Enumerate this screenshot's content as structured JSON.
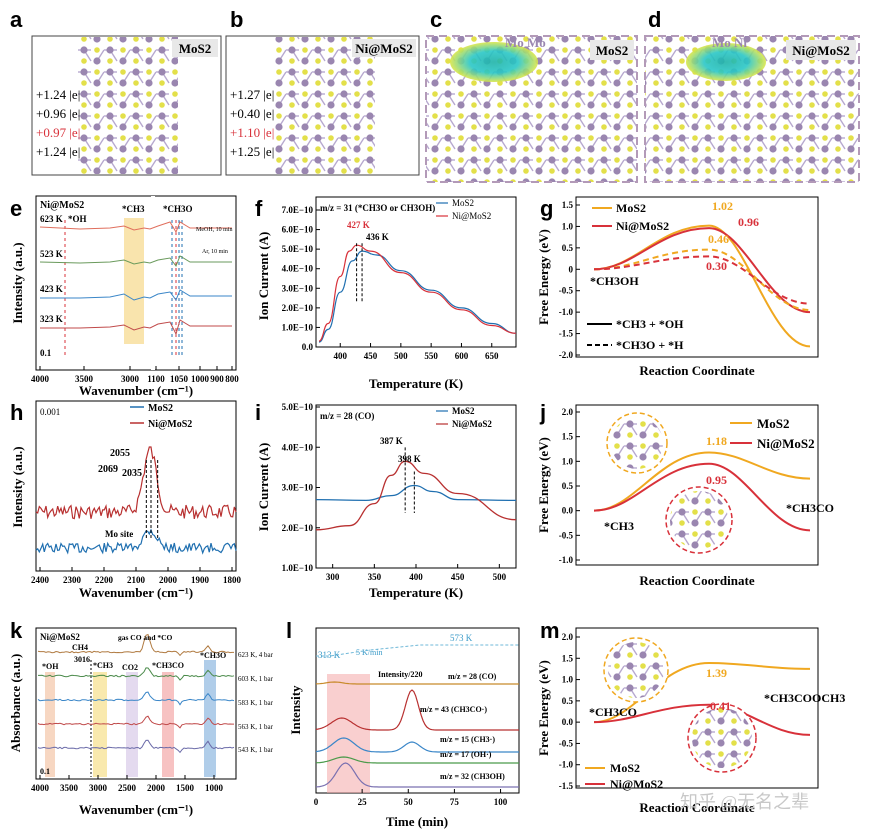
{
  "panel_letters": [
    "a",
    "b",
    "c",
    "d",
    "e",
    "f",
    "g",
    "h",
    "i",
    "j",
    "k",
    "l",
    "m"
  ],
  "colors": {
    "red": "#d8313a",
    "blue": "#1f6fb0",
    "orange": "#f0a820",
    "purple_box": "#b39ab8",
    "yellow_atom": "#e3e04a",
    "purple_atom": "#9a86b0"
  },
  "panel_a": {
    "label": "MoS2",
    "charges": [
      "+1.24 |e|",
      "+0.96 |e|",
      "+0.97 |e|",
      "+1.24 |e|"
    ]
  },
  "panel_b": {
    "label": "Ni@MoS2",
    "charges": [
      "+1.27 |e|",
      "+0.40 |e|",
      "+1.10 |e|",
      "+1.25 |e|"
    ]
  },
  "panel_c": {
    "label": "MoS2",
    "atoms": "Mo  Mo"
  },
  "panel_d": {
    "label": "Ni@MoS2",
    "atoms": "Mo  Ni"
  },
  "chart_data": [
    {
      "panel": "e",
      "type": "line",
      "sample": "Ni@MoS2",
      "xlabel": "Wavenumber (cm⁻¹)",
      "ylabel": "Intensity (a.u.)",
      "xticks": [
        "4000",
        "3500",
        "3000",
        "1100",
        "1050",
        "1000",
        "900",
        "800"
      ],
      "series": [
        {
          "name": "623 K"
        },
        {
          "name": "523 K"
        },
        {
          "name": "423 K"
        },
        {
          "name": "323 K"
        }
      ],
      "annotations": [
        "*OH",
        "*CH3",
        "*CH3O",
        "MeOH, 10 min",
        "Ar, 10 min"
      ],
      "scale": "0.1"
    },
    {
      "panel": "f",
      "type": "line",
      "title": "m/z = 31 (*CH3O or CH3OH)",
      "xlabel": "Temperature (K)",
      "ylabel": "Ion Current (A)",
      "xlim": [
        360,
        690
      ],
      "ylim": [
        0,
        7e-10
      ],
      "xticks": [
        "400",
        "450",
        "500",
        "550",
        "600",
        "650"
      ],
      "yticks": [
        "0.0",
        "1.0E−10",
        "2.0E−10",
        "3.0E−10",
        "4.0E−10",
        "5.0E−10",
        "6.0E−10",
        "7.0E−10"
      ],
      "series": [
        {
          "name": "MoS2",
          "peak_K": 436,
          "x": [
            365,
            380,
            400,
            420,
            436,
            460,
            500,
            550,
            600,
            650,
            690
          ],
          "y": [
            0.25,
            0.9,
            2.8,
            4.4,
            4.9,
            4.7,
            3.9,
            2.9,
            2.0,
            1.2,
            0.7
          ]
        },
        {
          "name": "Ni@MoS2",
          "peak_K": 427,
          "x": [
            365,
            380,
            400,
            415,
            427,
            450,
            500,
            550,
            600,
            650,
            690
          ],
          "y": [
            0.3,
            1.2,
            3.6,
            4.9,
            5.2,
            4.9,
            3.8,
            2.8,
            1.9,
            1.1,
            0.7
          ]
        }
      ],
      "peak_labels": [
        "427 K",
        "436 K"
      ]
    },
    {
      "panel": "g",
      "type": "line",
      "xlabel": "Reaction Coordinate",
      "ylabel": "Free Energy (eV)",
      "ylim": [
        -2.0,
        1.5
      ],
      "yticks": [
        "1.5",
        "1.0",
        "0.5",
        "0",
        "-0.5",
        "-1.0",
        "-1.5",
        "-2.0"
      ],
      "series": [
        {
          "name": "MoS2",
          "path": "*CH3 + *OH",
          "barrier": 1.02,
          "final": -1.8
        },
        {
          "name": "Ni@MoS2",
          "path": "*CH3 + *OH",
          "barrier": 0.96,
          "final": -1.0
        },
        {
          "name": "MoS2",
          "path": "*CH3O + *H",
          "barrier": 0.46,
          "final": -0.95
        },
        {
          "name": "Ni@MoS2",
          "path": "*CH3O + *H",
          "barrier": 0.3,
          "final": -0.8
        }
      ],
      "labels": [
        "1.02",
        "0.96",
        "0.46",
        "0.30",
        "*CH3OH"
      ],
      "legend_lines": [
        "*CH3 + *OH",
        "*CH3O + *H"
      ]
    },
    {
      "panel": "h",
      "type": "line",
      "xlabel": "Wavenumber (cm⁻¹)",
      "ylabel": "Intensity (a.u.)",
      "xlim": [
        2400,
        1800
      ],
      "xticks": [
        "2400",
        "2300",
        "2200",
        "2100",
        "2000",
        "1900",
        "1800"
      ],
      "series": [
        {
          "name": "MoS2"
        },
        {
          "name": "Ni@MoS2"
        }
      ],
      "peaks": [
        "2069",
        "2055",
        "2035"
      ],
      "annotation": "Mo site",
      "scale": "0.001"
    },
    {
      "panel": "i",
      "type": "line",
      "title": "m/z = 28 (CO)",
      "xlabel": "Temperature (K)",
      "ylabel": "Ion Current (A)",
      "xlim": [
        280,
        520
      ],
      "ylim": [
        1e-10,
        5e-10
      ],
      "xticks": [
        "300",
        "350",
        "400",
        "450",
        "500"
      ],
      "yticks": [
        "1.0E−10",
        "2.0E−10",
        "3.0E−10",
        "4.0E−10",
        "5.0E−10"
      ],
      "series": [
        {
          "name": "MoS2",
          "peak_K": 398,
          "x": [
            280,
            340,
            370,
            398,
            420,
            450,
            520
          ],
          "y": [
            2.7,
            2.68,
            2.8,
            3.05,
            2.9,
            2.7,
            2.68
          ]
        },
        {
          "name": "Ni@MoS2",
          "peak_K": 387,
          "x": [
            280,
            320,
            350,
            370,
            387,
            410,
            450,
            520
          ],
          "y": [
            1.95,
            2.05,
            2.6,
            3.3,
            3.65,
            3.35,
            2.85,
            2.2
          ]
        }
      ],
      "peak_labels": [
        "387 K",
        "398 K"
      ]
    },
    {
      "panel": "j",
      "type": "line",
      "xlabel": "Reaction Coordinate",
      "ylabel": "Free Energy (eV)",
      "ylim": [
        -1.0,
        2.0
      ],
      "yticks": [
        "2.0",
        "1.5",
        "1.0",
        "0.5",
        "0.0",
        "-0.5",
        "-1.0"
      ],
      "series": [
        {
          "name": "MoS2",
          "barrier": 1.18,
          "final": 0.65
        },
        {
          "name": "Ni@MoS2",
          "barrier": 0.95,
          "final": -0.4
        }
      ],
      "labels": [
        "1.18",
        "0.95",
        "*CH3",
        "*CH3CO"
      ]
    },
    {
      "panel": "k",
      "type": "line",
      "sample": "Ni@MoS2",
      "xlabel": "Wavenumber (cm⁻¹)",
      "ylabel": "Absorbance (a.u.)",
      "xticks": [
        "4000",
        "3500",
        "3000",
        "2500",
        "2000",
        "1500",
        "1000"
      ],
      "series": [
        {
          "name": "623 K, 4 bar"
        },
        {
          "name": "603 K, 1 bar"
        },
        {
          "name": "583 K, 1 bar"
        },
        {
          "name": "563 K, 1 bar"
        },
        {
          "name": "543 K, 1 bar"
        }
      ],
      "annotations": [
        "*OH",
        "CH4",
        "3016",
        "*CH3",
        "CO2",
        "gas CO and *CO",
        "*CH3CO",
        "*CH3O"
      ],
      "scale": "0.1"
    },
    {
      "panel": "l",
      "type": "line",
      "xlabel": "Time (min)",
      "ylabel": "Intensity",
      "xlim": [
        0,
        110
      ],
      "xticks": [
        "0",
        "25",
        "50",
        "75",
        "100"
      ],
      "temperature_labels": [
        "313 K",
        "5 K/min",
        "573 K"
      ],
      "series": [
        {
          "name": "m/z = 28 (CO)"
        },
        {
          "name": "m/z = 43 (CH3CO·)"
        },
        {
          "name": "m/z = 15 (CH3·)"
        },
        {
          "name": "m/z = 17 (OH·)"
        },
        {
          "name": "m/z = 32 (CH3OH)"
        }
      ],
      "annotation": "Intensity/220"
    },
    {
      "panel": "m",
      "type": "line",
      "xlabel": "Reaction Coordinate",
      "ylabel": "Free Energy (eV)",
      "ylim": [
        -1.5,
        2.0
      ],
      "yticks": [
        "2.0",
        "1.5",
        "1.0",
        "0.5",
        "0.0",
        "-0.5",
        "-1.0",
        "-1.5"
      ],
      "series": [
        {
          "name": "MoS2",
          "barrier": 1.39,
          "final": 1.25
        },
        {
          "name": "Ni@MoS2",
          "barrier": 0.41,
          "final": -0.3
        }
      ],
      "labels": [
        "1.39",
        "0.41",
        "*CH3CO",
        "*CH3COOCH3"
      ]
    }
  ],
  "watermark": "知乎 @无名之辈"
}
